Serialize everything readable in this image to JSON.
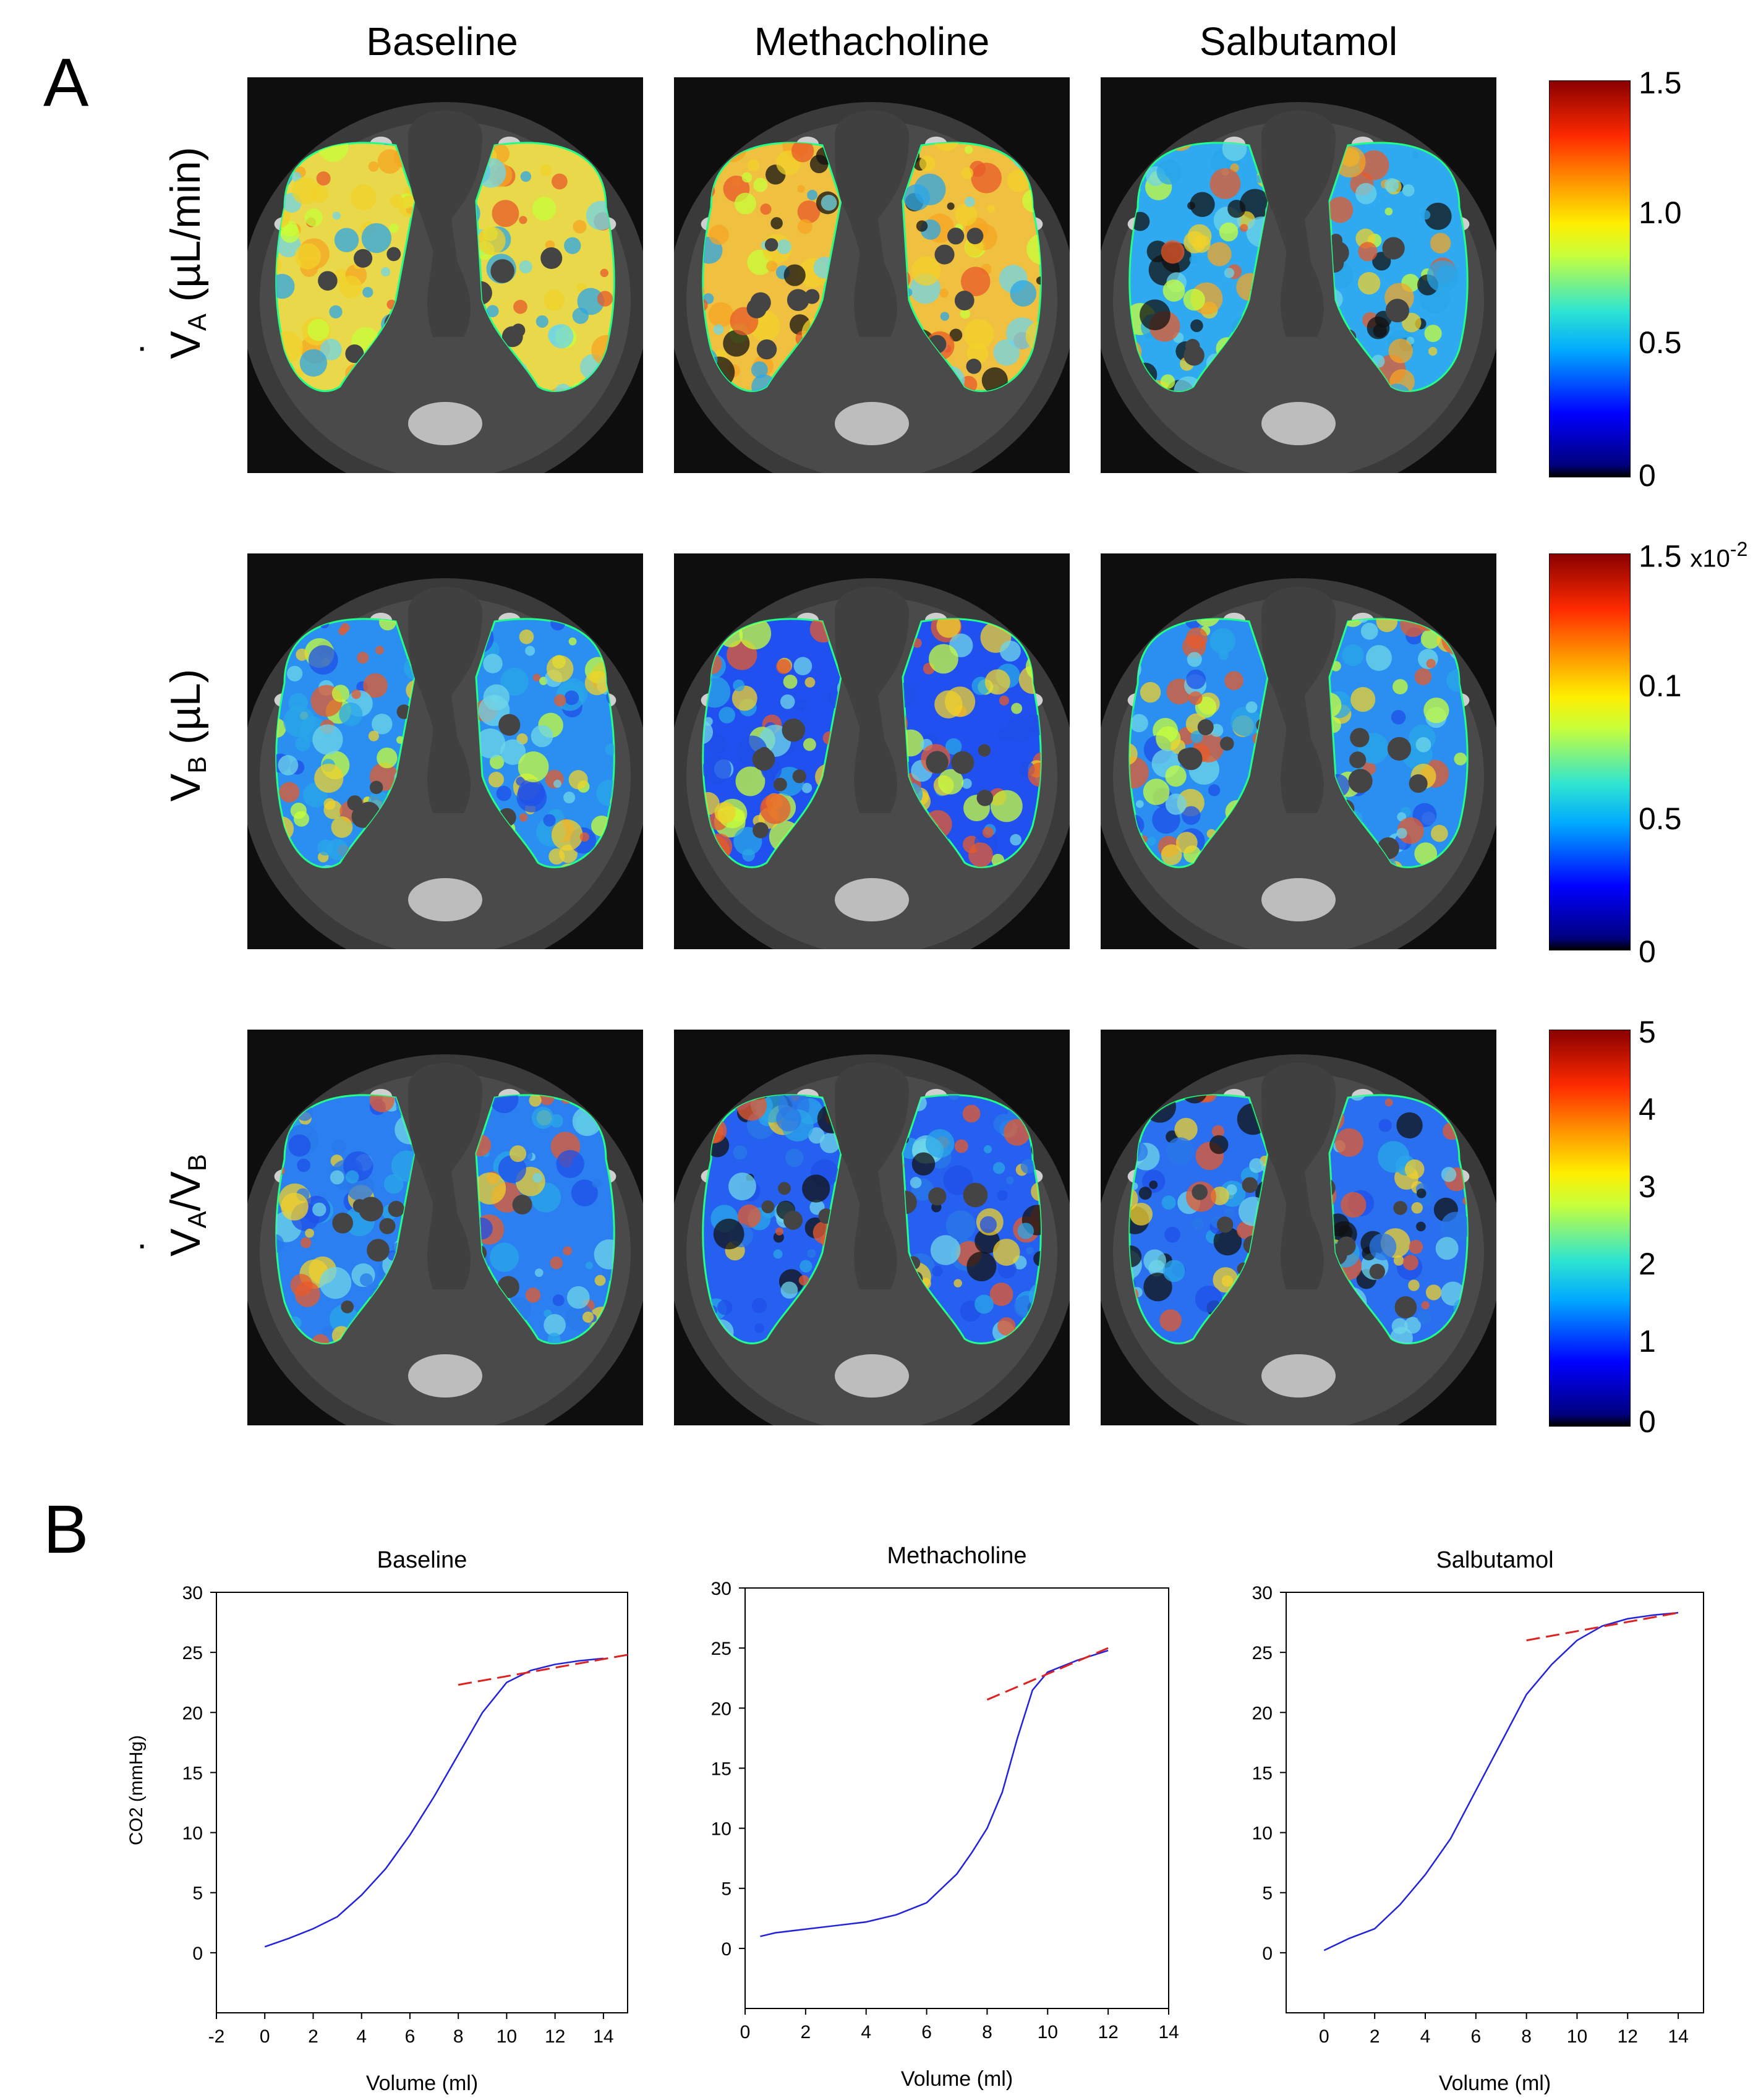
{
  "panel_a": {
    "label": "A",
    "columns": [
      "Baseline",
      "Methacholine",
      "Salbutamol"
    ],
    "rows": [
      {
        "label_main": "V",
        "label_sub": "A",
        "label_rest": " (µL/min)",
        "dotted": true
      },
      {
        "label_main": "V",
        "label_sub": "B",
        "label_rest": " (µL)",
        "dotted": false
      },
      {
        "label_main": "V",
        "label_sub": "A",
        "label_rest": "/V",
        "label_sub2": "B",
        "dotted": true
      }
    ],
    "colorbars": [
      {
        "ticks": [
          "1.5",
          "1.0",
          "0.5",
          "0"
        ]
      },
      {
        "ticks": [
          "1.5",
          "0.1",
          "0.5",
          "0"
        ],
        "multiplier": "x10",
        "exponent": "-2"
      },
      {
        "ticks": [
          "5",
          "4",
          "3",
          "2",
          "1",
          "0"
        ]
      }
    ]
  },
  "panel_b": {
    "label": "B",
    "colors": {
      "curve": "#2222dd",
      "fit": "#dd2222"
    }
  },
  "chart_data": [
    {
      "type": "line",
      "title": "Baseline",
      "xlabel": "Volume (ml)",
      "ylabel": "CO2 (mmHg)",
      "xlim": [
        -2,
        15
      ],
      "ylim": [
        -5,
        30
      ],
      "xticks": [
        -2,
        0,
        2,
        4,
        6,
        8,
        10,
        12,
        14
      ],
      "yticks": [
        0,
        5,
        10,
        15,
        20,
        25,
        30
      ],
      "series": [
        {
          "x": [
            0,
            1,
            2,
            3,
            4,
            5,
            6,
            7,
            8,
            9,
            10,
            11,
            12,
            13,
            14
          ],
          "y": [
            0.5,
            1.2,
            2.0,
            3.0,
            4.8,
            7.0,
            9.8,
            13.0,
            16.5,
            20.0,
            22.5,
            23.5,
            24.0,
            24.3,
            24.5
          ]
        },
        {
          "x": [
            8,
            15
          ],
          "y": [
            22.3,
            24.8
          ],
          "style": "dashed"
        }
      ]
    },
    {
      "type": "line",
      "title": "Methacholine",
      "xlabel": "Volume (ml)",
      "ylabel": "",
      "xlim": [
        0,
        14
      ],
      "ylim": [
        -5,
        30
      ],
      "xticks": [
        0,
        2,
        4,
        6,
        8,
        10,
        12,
        14
      ],
      "yticks": [
        0,
        5,
        10,
        15,
        20,
        25,
        30
      ],
      "series": [
        {
          "x": [
            0.5,
            1,
            2,
            3,
            4,
            5,
            6,
            7,
            7.5,
            8,
            8.5,
            9,
            9.5,
            10,
            10.5,
            11,
            11.5,
            12
          ],
          "y": [
            1.0,
            1.3,
            1.6,
            1.9,
            2.2,
            2.8,
            3.8,
            6.2,
            8.0,
            10.0,
            13.0,
            17.5,
            21.5,
            23.0,
            23.5,
            24.0,
            24.4,
            24.8
          ]
        },
        {
          "x": [
            8,
            12
          ],
          "y": [
            20.7,
            25.0
          ],
          "style": "dashed"
        }
      ]
    },
    {
      "type": "line",
      "title": "Salbutamol",
      "xlabel": "Volume (ml)",
      "ylabel": "",
      "xlim": [
        -1.5,
        15
      ],
      "ylim": [
        -5,
        30
      ],
      "xticks": [
        0,
        2,
        4,
        6,
        8,
        10,
        12,
        14
      ],
      "yticks": [
        0,
        5,
        10,
        15,
        20,
        25,
        30
      ],
      "series": [
        {
          "x": [
            0,
            1,
            2,
            3,
            4,
            5,
            6,
            7,
            8,
            9,
            10,
            11,
            12,
            13,
            14
          ],
          "y": [
            0.2,
            1.2,
            2.0,
            4.0,
            6.5,
            9.5,
            13.5,
            17.5,
            21.5,
            24.0,
            26.0,
            27.2,
            27.8,
            28.1,
            28.3
          ]
        },
        {
          "x": [
            8,
            14
          ],
          "y": [
            26.0,
            28.3
          ],
          "style": "dashed"
        }
      ]
    }
  ]
}
